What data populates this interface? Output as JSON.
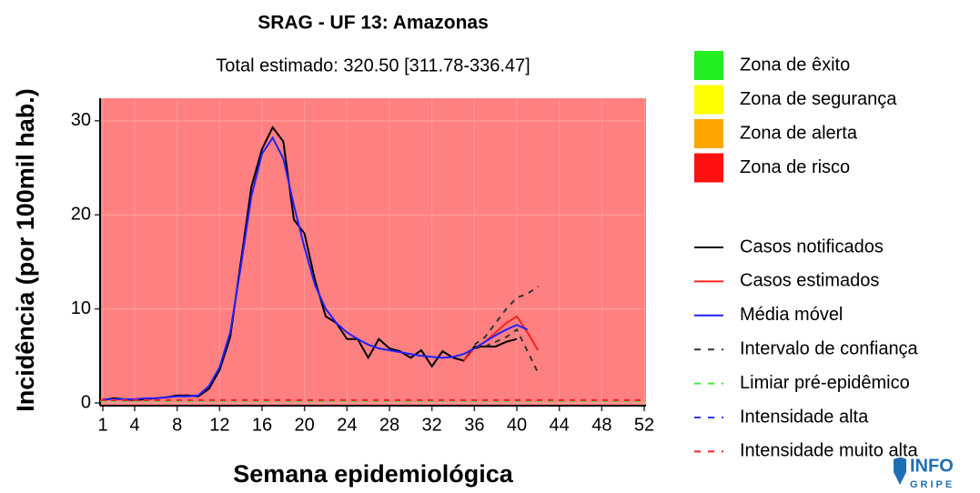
{
  "chart_data": {
    "type": "line",
    "title": "SRAG - UF 13: Amazonas",
    "subtitle": "Total estimado: 320.50 [311.78-336.47]",
    "x_label": "Semana epidemiológica",
    "y_label": "Incidência (por 100mil hab.)",
    "x": [
      1,
      2,
      3,
      4,
      5,
      6,
      7,
      8,
      9,
      10,
      11,
      12,
      13,
      14,
      15,
      16,
      17,
      18,
      19,
      20,
      21,
      22,
      23,
      24,
      25,
      26,
      27,
      28,
      29,
      30,
      31,
      32,
      33,
      34,
      35,
      36,
      37,
      38,
      39,
      40,
      41,
      42,
      43,
      44,
      45,
      46,
      47,
      48,
      49,
      50,
      51,
      52
    ],
    "xlim": [
      1,
      52
    ],
    "xticks": [
      1,
      4,
      8,
      12,
      16,
      20,
      24,
      28,
      32,
      36,
      40,
      44,
      48,
      52
    ],
    "ylim": [
      0,
      32.4
    ],
    "yticks": [
      0,
      10,
      20,
      30
    ],
    "background_zone": "#ff8080",
    "zones": [
      {
        "name": "Zona de êxito",
        "color": "#22ee22"
      },
      {
        "name": "Zona de segurança",
        "color": "#ffff00"
      },
      {
        "name": "Zona de alerta",
        "color": "#ffa500"
      },
      {
        "name": "Zona de risco",
        "color": "#ff1010"
      }
    ],
    "series": [
      {
        "name": "Casos notificados",
        "color": "#000000",
        "values": [
          0.3,
          0.5,
          0.4,
          0.3,
          0.4,
          0.5,
          0.6,
          0.8,
          0.8,
          0.7,
          1.5,
          3.5,
          7,
          15,
          23,
          27,
          29.3,
          27.8,
          19.5,
          18,
          13,
          9.2,
          8.5,
          6.8,
          6.8,
          4.8,
          6.8,
          5.8,
          5.5,
          4.8,
          5.6,
          3.9,
          5.5,
          4.8,
          4.5,
          6,
          6,
          6,
          6.5,
          6.8,
          null,
          null,
          null,
          null,
          null,
          null,
          null,
          null,
          null,
          null,
          null,
          null
        ]
      },
      {
        "name": "Casos estimados",
        "color": "#ff2020",
        "values": [
          null,
          null,
          null,
          null,
          null,
          null,
          null,
          null,
          null,
          null,
          null,
          null,
          null,
          null,
          null,
          null,
          null,
          null,
          null,
          null,
          null,
          null,
          null,
          null,
          null,
          null,
          null,
          null,
          null,
          null,
          null,
          null,
          null,
          null,
          4.5,
          5.8,
          6.5,
          7.5,
          8.5,
          9.2,
          7.5,
          5.6,
          null,
          null,
          null,
          null,
          null,
          null,
          null,
          null,
          null,
          null
        ]
      },
      {
        "name": "Média móvel",
        "color": "#2020ff",
        "values": [
          0.4,
          0.4,
          0.4,
          0.4,
          0.5,
          0.5,
          0.6,
          0.7,
          0.7,
          0.8,
          1.8,
          3.8,
          7.5,
          14.5,
          22,
          26.5,
          28.2,
          26,
          21,
          16.5,
          12.5,
          10,
          8.5,
          7.5,
          6.8,
          6.2,
          5.8,
          5.6,
          5.4,
          5.2,
          5,
          4.9,
          4.8,
          4.9,
          5.2,
          5.8,
          6.5,
          7.2,
          7.8,
          8.3,
          7.8,
          null,
          null,
          null,
          null,
          null,
          null,
          null,
          null,
          null,
          null,
          null
        ]
      },
      {
        "name": "Intervalo de confiança",
        "color": "#333333",
        "dashed": true,
        "values": [
          null,
          null,
          null,
          null,
          null,
          null,
          null,
          null,
          null,
          null,
          null,
          null,
          null,
          null,
          null,
          null,
          null,
          null,
          null,
          null,
          null,
          null,
          null,
          null,
          null,
          null,
          null,
          null,
          null,
          null,
          null,
          null,
          null,
          null,
          null,
          6.2,
          7,
          8.5,
          10,
          11.2,
          11.6,
          12.4,
          null,
          null,
          null,
          null,
          null,
          null,
          null,
          null,
          null,
          null
        ],
        "lower": [
          null,
          null,
          null,
          null,
          null,
          null,
          null,
          null,
          null,
          null,
          null,
          null,
          null,
          null,
          null,
          null,
          null,
          null,
          null,
          null,
          null,
          null,
          null,
          null,
          null,
          null,
          null,
          null,
          null,
          null,
          null,
          null,
          null,
          null,
          null,
          5.8,
          6,
          6.5,
          7,
          7.8,
          5.5,
          3.2,
          null,
          null,
          null,
          null,
          null,
          null,
          null,
          null,
          null,
          null
        ]
      },
      {
        "name": "Limiar pré-epidêmico",
        "color": "#33ee33",
        "dashed": true,
        "value": 0.2
      },
      {
        "name": "Intensidade alta",
        "color": "#3333ff",
        "dashed": true,
        "value": 0.3
      },
      {
        "name": "Intensidade muito alta",
        "color": "#ff2020",
        "dashed": true,
        "value": 0.3
      }
    ],
    "logo": [
      "INFO",
      "GRIPE"
    ]
  }
}
